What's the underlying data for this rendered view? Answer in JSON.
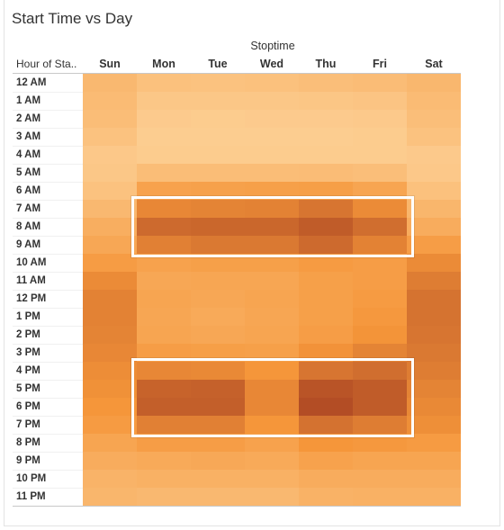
{
  "title": "Start Time vs Day",
  "column_header": "Stoptime",
  "row_header": "Hour of Sta..",
  "colors": {
    "low": "#fdd39a",
    "mid": "#f5963a",
    "high": "#a23b20",
    "highlight_border": "#ffffff"
  },
  "chart_data": {
    "type": "heatmap",
    "title": "Start Time vs Day",
    "xlabel": "Stoptime",
    "ylabel": "Hour of Sta..",
    "x": [
      "Sun",
      "Mon",
      "Tue",
      "Wed",
      "Thu",
      "Fri",
      "Sat"
    ],
    "y": [
      "12 AM",
      "1 AM",
      "2 AM",
      "3 AM",
      "4 AM",
      "5 AM",
      "6 AM",
      "7 AM",
      "8 AM",
      "9 AM",
      "10 AM",
      "11 AM",
      "12 PM",
      "1 PM",
      "2 PM",
      "3 PM",
      "4 PM",
      "5 PM",
      "6 PM",
      "7 PM",
      "8 PM",
      "9 PM",
      "10 PM",
      "11 PM"
    ],
    "values": [
      [
        0.22,
        0.15,
        0.14,
        0.15,
        0.17,
        0.19,
        0.23
      ],
      [
        0.2,
        0.1,
        0.1,
        0.1,
        0.11,
        0.12,
        0.2
      ],
      [
        0.18,
        0.07,
        0.06,
        0.07,
        0.07,
        0.08,
        0.17
      ],
      [
        0.14,
        0.05,
        0.05,
        0.05,
        0.05,
        0.06,
        0.14
      ],
      [
        0.09,
        0.06,
        0.06,
        0.06,
        0.06,
        0.06,
        0.08
      ],
      [
        0.1,
        0.18,
        0.18,
        0.18,
        0.19,
        0.17,
        0.09
      ],
      [
        0.14,
        0.4,
        0.41,
        0.42,
        0.43,
        0.38,
        0.15
      ],
      [
        0.22,
        0.58,
        0.6,
        0.61,
        0.68,
        0.56,
        0.24
      ],
      [
        0.3,
        0.74,
        0.76,
        0.76,
        0.82,
        0.72,
        0.32
      ],
      [
        0.36,
        0.62,
        0.66,
        0.66,
        0.74,
        0.61,
        0.44
      ],
      [
        0.45,
        0.4,
        0.42,
        0.42,
        0.46,
        0.44,
        0.56
      ],
      [
        0.56,
        0.36,
        0.37,
        0.37,
        0.42,
        0.44,
        0.64
      ],
      [
        0.61,
        0.38,
        0.36,
        0.38,
        0.42,
        0.46,
        0.69
      ],
      [
        0.61,
        0.37,
        0.34,
        0.37,
        0.42,
        0.48,
        0.69
      ],
      [
        0.6,
        0.38,
        0.36,
        0.38,
        0.44,
        0.51,
        0.68
      ],
      [
        0.58,
        0.44,
        0.43,
        0.42,
        0.52,
        0.6,
        0.66
      ],
      [
        0.55,
        0.58,
        0.57,
        0.5,
        0.68,
        0.72,
        0.64
      ],
      [
        0.53,
        0.78,
        0.79,
        0.58,
        0.86,
        0.82,
        0.6
      ],
      [
        0.5,
        0.8,
        0.8,
        0.58,
        0.9,
        0.82,
        0.57
      ],
      [
        0.46,
        0.62,
        0.62,
        0.5,
        0.7,
        0.64,
        0.54
      ],
      [
        0.38,
        0.44,
        0.44,
        0.4,
        0.5,
        0.48,
        0.46
      ],
      [
        0.32,
        0.34,
        0.35,
        0.34,
        0.4,
        0.38,
        0.38
      ],
      [
        0.26,
        0.28,
        0.28,
        0.28,
        0.32,
        0.32,
        0.32
      ],
      [
        0.24,
        0.22,
        0.22,
        0.22,
        0.27,
        0.28,
        0.28
      ]
    ],
    "value_scale": "relative count (0-1)",
    "highlights": [
      {
        "x_from": "Mon",
        "x_to": "Fri",
        "y_from": "7 AM",
        "y_to": "9 AM"
      },
      {
        "x_from": "Mon",
        "x_to": "Fri",
        "y_from": "4 PM",
        "y_to": "7 PM"
      }
    ],
    "grid": false,
    "legend": "none"
  }
}
